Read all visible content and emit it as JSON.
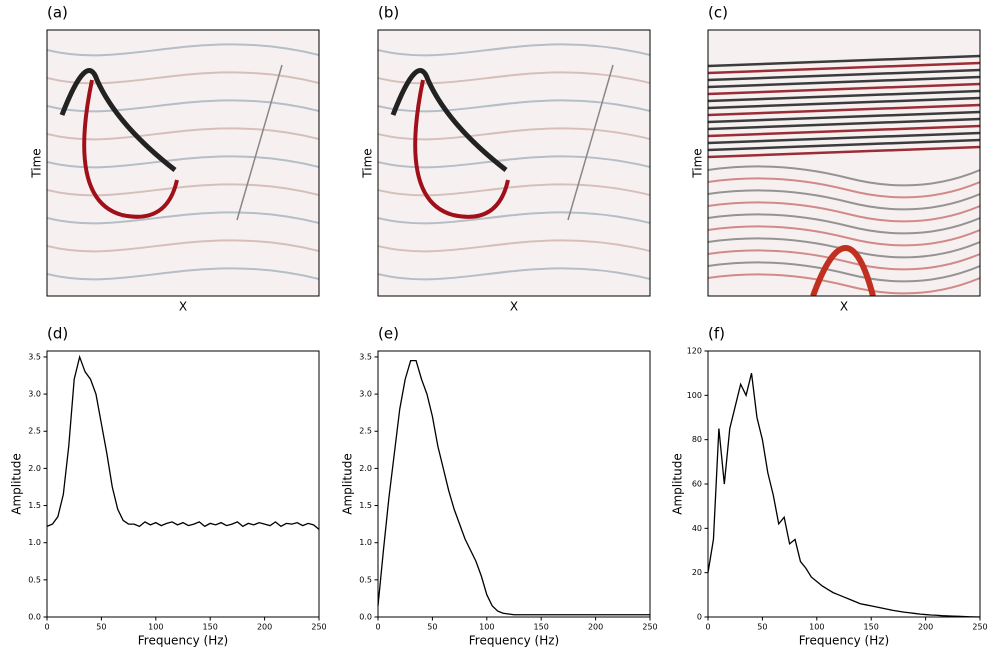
{
  "chart_data": [
    {
      "type": "image",
      "title": "(a)",
      "xlabel": "X",
      "ylabel": "Time"
    },
    {
      "type": "image",
      "title": "(b)",
      "xlabel": "X",
      "ylabel": "Time"
    },
    {
      "type": "image",
      "title": "(c)",
      "xlabel": "X",
      "ylabel": "Time"
    },
    {
      "type": "line",
      "title": "(d)",
      "xlabel": "Frequency (Hz)",
      "ylabel": "Amplitude",
      "color": "#000000",
      "x": [
        0,
        5,
        10,
        15,
        20,
        25,
        30,
        35,
        40,
        45,
        50,
        55,
        60,
        65,
        70,
        75,
        80,
        85,
        90,
        95,
        100,
        105,
        110,
        115,
        120,
        125,
        130,
        135,
        140,
        145,
        150,
        155,
        160,
        165,
        170,
        175,
        180,
        185,
        190,
        195,
        200,
        205,
        210,
        215,
        220,
        225,
        230,
        235,
        240,
        245,
        250
      ],
      "values": [
        1.22,
        1.25,
        1.35,
        1.65,
        2.3,
        3.2,
        3.5,
        3.3,
        3.2,
        3.0,
        2.6,
        2.2,
        1.75,
        1.45,
        1.3,
        1.25,
        1.25,
        1.22,
        1.28,
        1.24,
        1.27,
        1.23,
        1.26,
        1.28,
        1.24,
        1.27,
        1.23,
        1.25,
        1.28,
        1.22,
        1.26,
        1.24,
        1.27,
        1.23,
        1.25,
        1.28,
        1.22,
        1.26,
        1.24,
        1.27,
        1.25,
        1.23,
        1.28,
        1.22,
        1.26,
        1.25,
        1.27,
        1.23,
        1.26,
        1.24,
        1.18
      ],
      "xlim": [
        0,
        250
      ],
      "xticks": [
        0,
        50,
        100,
        150,
        200,
        250
      ],
      "ylim": [
        0,
        3.58
      ],
      "yticks": [
        {
          "value": 0,
          "label": "0.0"
        },
        {
          "value": 0.5,
          "label": "0.5"
        },
        {
          "value": 1,
          "label": "1.0"
        },
        {
          "value": 1.5,
          "label": "1.5"
        },
        {
          "value": 2,
          "label": "2.0"
        },
        {
          "value": 2.5,
          "label": "2.5"
        },
        {
          "value": 3,
          "label": "3.0"
        },
        {
          "value": 3.5,
          "label": "3.5"
        }
      ]
    },
    {
      "type": "line",
      "title": "(e)",
      "xlabel": "Frequency (Hz)",
      "ylabel": "Amplitude",
      "color": "#000000",
      "x": [
        0,
        5,
        10,
        15,
        20,
        25,
        30,
        35,
        40,
        45,
        50,
        55,
        60,
        65,
        70,
        75,
        80,
        85,
        90,
        95,
        100,
        105,
        110,
        115,
        120,
        125,
        130,
        135,
        140,
        145,
        150,
        155,
        160,
        165,
        170,
        175,
        180,
        185,
        190,
        195,
        200,
        205,
        210,
        215,
        220,
        225,
        230,
        235,
        240,
        245,
        250
      ],
      "values": [
        0.15,
        0.9,
        1.6,
        2.2,
        2.8,
        3.2,
        3.45,
        3.45,
        3.2,
        3.0,
        2.7,
        2.3,
        2.0,
        1.7,
        1.45,
        1.25,
        1.05,
        0.9,
        0.75,
        0.55,
        0.3,
        0.15,
        0.08,
        0.05,
        0.04,
        0.03,
        0.03,
        0.03,
        0.03,
        0.03,
        0.03,
        0.03,
        0.03,
        0.03,
        0.03,
        0.03,
        0.03,
        0.03,
        0.03,
        0.03,
        0.03,
        0.03,
        0.03,
        0.03,
        0.03,
        0.03,
        0.03,
        0.03,
        0.03,
        0.03,
        0.03
      ],
      "xlim": [
        0,
        250
      ],
      "xticks": [
        0,
        50,
        100,
        150,
        200,
        250
      ],
      "ylim": [
        0,
        3.58
      ],
      "yticks": [
        {
          "value": 0,
          "label": "0.0"
        },
        {
          "value": 0.5,
          "label": "0.5"
        },
        {
          "value": 1,
          "label": "1.0"
        },
        {
          "value": 1.5,
          "label": "1.5"
        },
        {
          "value": 2,
          "label": "2.0"
        },
        {
          "value": 2.5,
          "label": "2.5"
        },
        {
          "value": 3,
          "label": "3.0"
        },
        {
          "value": 3.5,
          "label": "3.5"
        }
      ]
    },
    {
      "type": "line",
      "title": "(f)",
      "xlabel": "Frequency (Hz)",
      "ylabel": "Amplitude",
      "color": "#000000",
      "x": [
        0,
        5,
        10,
        15,
        20,
        25,
        30,
        35,
        40,
        45,
        50,
        55,
        60,
        65,
        70,
        75,
        80,
        85,
        90,
        95,
        100,
        105,
        110,
        115,
        120,
        125,
        130,
        135,
        140,
        145,
        150,
        155,
        160,
        165,
        170,
        175,
        180,
        185,
        190,
        195,
        200,
        205,
        210,
        215,
        220,
        225,
        230,
        235,
        240,
        245,
        250
      ],
      "values": [
        20,
        35,
        85,
        60,
        85,
        95,
        105,
        100,
        110,
        90,
        80,
        65,
        55,
        42,
        45,
        33,
        35,
        25,
        22,
        18,
        16,
        14,
        12.5,
        11,
        10,
        9,
        8,
        7,
        6,
        5.5,
        5,
        4.5,
        4,
        3.5,
        3,
        2.6,
        2.2,
        1.9,
        1.6,
        1.3,
        1.1,
        0.9,
        0.8,
        0.6,
        0.5,
        0.4,
        0.3,
        0.2,
        0.1,
        0.05,
        0
      ],
      "xlim": [
        0,
        250
      ],
      "xticks": [
        0,
        50,
        100,
        150,
        200,
        250
      ],
      "ylim": [
        0,
        120
      ],
      "yticks": [
        0,
        20,
        40,
        60,
        80,
        100,
        120
      ]
    }
  ]
}
